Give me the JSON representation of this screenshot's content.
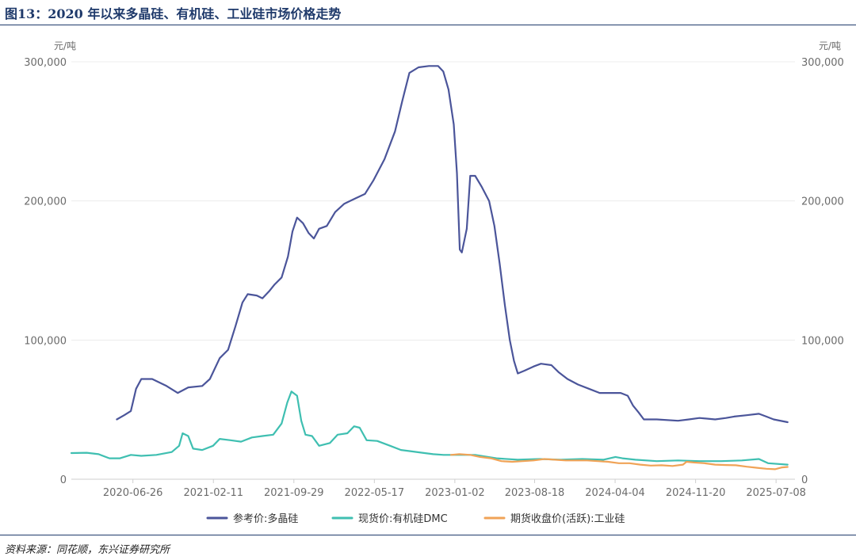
{
  "figure": {
    "title": "图13：2020 年以来多晶硅、有机硅、工业硅市场价格走势",
    "source": "资料来源：同花顺，东兴证券研究所"
  },
  "chart_data": {
    "type": "line",
    "y_unit_left": "元/吨",
    "y_unit_right": "元/吨",
    "ylim": [
      0,
      300000
    ],
    "y_ticks": [
      0,
      100000,
      200000,
      300000
    ],
    "y_tick_labels": [
      "0",
      "100,000",
      "200,000",
      "300,000"
    ],
    "x_range": [
      "2020-01-02",
      "2025-08-31"
    ],
    "x_tick_labels": [
      "2020-06-26",
      "2021-02-11",
      "2021-09-29",
      "2022-05-17",
      "2023-01-02",
      "2023-08-18",
      "2024-04-04",
      "2024-11-20",
      "2025-07-08"
    ],
    "grid": true,
    "legend_position": "bottom",
    "series": [
      {
        "name": "参考价:多晶硅",
        "color": "#4b559a",
        "points": [
          [
            "2020-05-11",
            43000
          ],
          [
            "2020-06-01",
            46000
          ],
          [
            "2020-06-20",
            49000
          ],
          [
            "2020-07-05",
            65000
          ],
          [
            "2020-07-20",
            72000
          ],
          [
            "2020-08-20",
            72000
          ],
          [
            "2020-09-30",
            67000
          ],
          [
            "2020-11-01",
            62000
          ],
          [
            "2020-12-01",
            66000
          ],
          [
            "2021-01-10",
            67000
          ],
          [
            "2021-02-01",
            72000
          ],
          [
            "2021-03-01",
            87000
          ],
          [
            "2021-03-25",
            93000
          ],
          [
            "2021-04-15",
            110000
          ],
          [
            "2021-05-05",
            127000
          ],
          [
            "2021-05-20",
            133000
          ],
          [
            "2021-06-15",
            132000
          ],
          [
            "2021-07-01",
            130000
          ],
          [
            "2021-07-20",
            135000
          ],
          [
            "2021-08-05",
            140000
          ],
          [
            "2021-08-25",
            145000
          ],
          [
            "2021-09-12",
            160000
          ],
          [
            "2021-09-25",
            178000
          ],
          [
            "2021-10-08",
            188000
          ],
          [
            "2021-10-25",
            184000
          ],
          [
            "2021-11-10",
            177000
          ],
          [
            "2021-11-25",
            173000
          ],
          [
            "2021-12-10",
            180000
          ],
          [
            "2022-01-01",
            182000
          ],
          [
            "2022-01-25",
            192000
          ],
          [
            "2022-02-20",
            198000
          ],
          [
            "2022-03-25",
            202000
          ],
          [
            "2022-04-20",
            205000
          ],
          [
            "2022-05-15",
            215000
          ],
          [
            "2022-06-15",
            230000
          ],
          [
            "2022-07-15",
            250000
          ],
          [
            "2022-08-05",
            272000
          ],
          [
            "2022-08-25",
            292000
          ],
          [
            "2022-09-20",
            296000
          ],
          [
            "2022-10-20",
            297000
          ],
          [
            "2022-11-15",
            297000
          ],
          [
            "2022-11-30",
            293000
          ],
          [
            "2022-12-15",
            280000
          ],
          [
            "2022-12-30",
            255000
          ],
          [
            "2023-01-08",
            220000
          ],
          [
            "2023-01-16",
            165000
          ],
          [
            "2023-01-22",
            163000
          ],
          [
            "2023-02-05",
            180000
          ],
          [
            "2023-02-15",
            218000
          ],
          [
            "2023-03-01",
            218000
          ],
          [
            "2023-03-20",
            210000
          ],
          [
            "2023-04-10",
            200000
          ],
          [
            "2023-04-25",
            182000
          ],
          [
            "2023-05-10",
            155000
          ],
          [
            "2023-05-25",
            125000
          ],
          [
            "2023-06-08",
            100000
          ],
          [
            "2023-06-20",
            85000
          ],
          [
            "2023-07-01",
            76000
          ],
          [
            "2023-07-20",
            78000
          ],
          [
            "2023-08-15",
            81000
          ],
          [
            "2023-09-05",
            83000
          ],
          [
            "2023-10-05",
            82000
          ],
          [
            "2023-10-25",
            77000
          ],
          [
            "2023-11-20",
            72000
          ],
          [
            "2023-12-20",
            68000
          ],
          [
            "2024-01-20",
            65000
          ],
          [
            "2024-02-20",
            62000
          ],
          [
            "2024-03-20",
            62000
          ],
          [
            "2024-04-20",
            62000
          ],
          [
            "2024-05-10",
            60000
          ],
          [
            "2024-05-25",
            53000
          ],
          [
            "2024-06-10",
            48000
          ],
          [
            "2024-06-25",
            43000
          ],
          [
            "2024-08-01",
            43000
          ],
          [
            "2024-10-01",
            42000
          ],
          [
            "2024-11-01",
            43000
          ],
          [
            "2024-12-01",
            44000
          ],
          [
            "2025-01-15",
            43000
          ],
          [
            "2025-02-15",
            44000
          ],
          [
            "2025-03-10",
            45000
          ],
          [
            "2025-04-15",
            46000
          ],
          [
            "2025-05-20",
            47000
          ],
          [
            "2025-06-10",
            45000
          ],
          [
            "2025-07-01",
            43000
          ],
          [
            "2025-08-10",
            41000
          ]
        ]
      },
      {
        "name": "现货价:有机硅DMC",
        "color": "#3fbfb1",
        "points": [
          [
            "2020-01-02",
            18800
          ],
          [
            "2020-02-15",
            19000
          ],
          [
            "2020-03-20",
            18000
          ],
          [
            "2020-04-20",
            15000
          ],
          [
            "2020-05-20",
            15000
          ],
          [
            "2020-06-20",
            17500
          ],
          [
            "2020-07-20",
            16800
          ],
          [
            "2020-09-01",
            17500
          ],
          [
            "2020-10-15",
            19500
          ],
          [
            "2020-11-05",
            24000
          ],
          [
            "2020-11-15",
            33000
          ],
          [
            "2020-12-01",
            31000
          ],
          [
            "2020-12-15",
            22000
          ],
          [
            "2021-01-10",
            21000
          ],
          [
            "2021-02-10",
            24000
          ],
          [
            "2021-03-01",
            29000
          ],
          [
            "2021-04-01",
            28000
          ],
          [
            "2021-05-01",
            27000
          ],
          [
            "2021-06-01",
            30000
          ],
          [
            "2021-07-01",
            31000
          ],
          [
            "2021-08-01",
            32000
          ],
          [
            "2021-08-25",
            40000
          ],
          [
            "2021-09-10",
            55000
          ],
          [
            "2021-09-22",
            63000
          ],
          [
            "2021-10-08",
            60000
          ],
          [
            "2021-10-20",
            42000
          ],
          [
            "2021-11-01",
            32000
          ],
          [
            "2021-11-20",
            31000
          ],
          [
            "2021-12-10",
            24000
          ],
          [
            "2022-01-10",
            26000
          ],
          [
            "2022-02-01",
            32000
          ],
          [
            "2022-03-01",
            33000
          ],
          [
            "2022-03-20",
            38000
          ],
          [
            "2022-04-05",
            37000
          ],
          [
            "2022-04-25",
            28000
          ],
          [
            "2022-05-25",
            27500
          ],
          [
            "2022-07-01",
            24000
          ],
          [
            "2022-08-01",
            21000
          ],
          [
            "2022-09-01",
            20000
          ],
          [
            "2022-10-01",
            19000
          ],
          [
            "2022-11-01",
            18000
          ],
          [
            "2022-12-01",
            17500
          ],
          [
            "2023-01-01",
            17500
          ],
          [
            "2023-03-01",
            17500
          ],
          [
            "2023-05-01",
            15000
          ],
          [
            "2023-07-01",
            14000
          ],
          [
            "2023-09-01",
            14500
          ],
          [
            "2023-11-01",
            14000
          ],
          [
            "2024-01-01",
            14500
          ],
          [
            "2024-03-01",
            14000
          ],
          [
            "2024-04-05",
            16000
          ],
          [
            "2024-04-25",
            15000
          ],
          [
            "2024-06-01",
            14000
          ],
          [
            "2024-08-01",
            13000
          ],
          [
            "2024-10-01",
            13500
          ],
          [
            "2024-12-01",
            13000
          ],
          [
            "2025-02-01",
            13000
          ],
          [
            "2025-04-01",
            13500
          ],
          [
            "2025-05-20",
            14500
          ],
          [
            "2025-06-15",
            11500
          ],
          [
            "2025-08-10",
            10500
          ]
        ]
      },
      {
        "name": "期货收盘价(活跃):工业硅",
        "color": "#f0a357",
        "points": [
          [
            "2022-12-22",
            17500
          ],
          [
            "2023-01-15",
            18000
          ],
          [
            "2023-02-15",
            17500
          ],
          [
            "2023-03-15",
            16000
          ],
          [
            "2023-04-15",
            15000
          ],
          [
            "2023-05-15",
            13000
          ],
          [
            "2023-06-15",
            12500
          ],
          [
            "2023-07-15",
            13000
          ],
          [
            "2023-08-15",
            13500
          ],
          [
            "2023-09-15",
            14500
          ],
          [
            "2023-10-15",
            14000
          ],
          [
            "2023-11-15",
            13500
          ],
          [
            "2023-12-15",
            13500
          ],
          [
            "2024-01-15",
            13500
          ],
          [
            "2024-02-15",
            13000
          ],
          [
            "2024-03-15",
            12500
          ],
          [
            "2024-04-15",
            11500
          ],
          [
            "2024-05-15",
            11500
          ],
          [
            "2024-06-15",
            10500
          ],
          [
            "2024-07-15",
            9800
          ],
          [
            "2024-08-15",
            10000
          ],
          [
            "2024-09-15",
            9500
          ],
          [
            "2024-10-15",
            10500
          ],
          [
            "2024-10-25",
            12500
          ],
          [
            "2024-11-15",
            12000
          ],
          [
            "2024-12-15",
            11500
          ],
          [
            "2025-01-15",
            10500
          ],
          [
            "2025-02-15",
            10200
          ],
          [
            "2025-03-15",
            10000
          ],
          [
            "2025-04-15",
            9000
          ],
          [
            "2025-05-15",
            8200
          ],
          [
            "2025-06-10",
            7500
          ],
          [
            "2025-07-05",
            7200
          ],
          [
            "2025-07-25",
            8500
          ],
          [
            "2025-08-10",
            8800
          ]
        ]
      }
    ]
  }
}
